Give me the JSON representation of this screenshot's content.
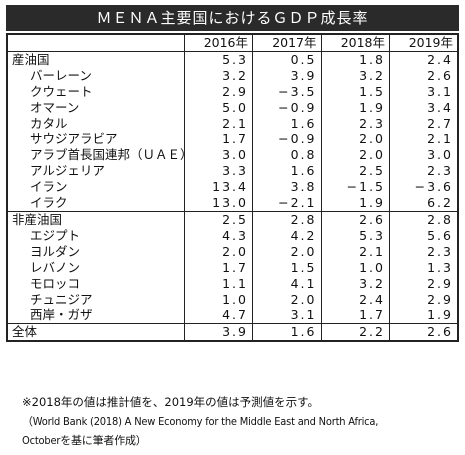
{
  "title": "ＭＥＮＡ主要国におけるＧＤＰ成長率",
  "columns": [
    "2016年",
    "2017年",
    "2018年",
    "2019年"
  ],
  "groups": [
    {
      "label": "産油国",
      "values": [
        "5.3",
        "0.5",
        "1.8",
        "2.4"
      ],
      "items": [
        {
          "label": "バーレーン",
          "values": [
            "3.2",
            "3.9",
            "3.2",
            "2.6"
          ]
        },
        {
          "label": "クウェート",
          "values": [
            "2.9",
            "−3.5",
            "1.5",
            "3.1"
          ]
        },
        {
          "label": "オマーン",
          "values": [
            "5.0",
            "−0.9",
            "1.9",
            "3.4"
          ]
        },
        {
          "label": "カタル",
          "values": [
            "2.1",
            "1.6",
            "2.3",
            "2.7"
          ]
        },
        {
          "label": "サウジアラビア",
          "values": [
            "1.7",
            "−0.9",
            "2.0",
            "2.1"
          ]
        },
        {
          "label": "アラブ首長国連邦（ＵＡＥ）",
          "values": [
            "3.0",
            "0.8",
            "2.0",
            "3.0"
          ]
        },
        {
          "label": "アルジェリア",
          "values": [
            "3.3",
            "1.6",
            "2.5",
            "2.3"
          ]
        },
        {
          "label": "イラン",
          "values": [
            "13.4",
            "3.8",
            "−1.5",
            "−3.6"
          ]
        },
        {
          "label": "イラク",
          "values": [
            "13.0",
            "−2.1",
            "1.9",
            "6.2"
          ]
        }
      ]
    },
    {
      "label": "非産油国",
      "values": [
        "2.5",
        "2.8",
        "2.6",
        "2.8"
      ],
      "items": [
        {
          "label": "エジプト",
          "values": [
            "4.3",
            "4.2",
            "5.3",
            "5.6"
          ]
        },
        {
          "label": "ヨルダン",
          "values": [
            "2.0",
            "2.0",
            "2.1",
            "2.3"
          ]
        },
        {
          "label": "レバノン",
          "values": [
            "1.7",
            "1.5",
            "1.0",
            "1.3"
          ]
        },
        {
          "label": "モロッコ",
          "values": [
            "1.1",
            "4.1",
            "3.2",
            "2.9"
          ]
        },
        {
          "label": "チュニジア",
          "values": [
            "1.0",
            "2.0",
            "2.4",
            "2.9"
          ]
        },
        {
          "label": "西岸・ガザ",
          "values": [
            "4.7",
            "3.1",
            "1.7",
            "1.9"
          ]
        }
      ]
    }
  ],
  "total": {
    "label": "全体",
    "values": [
      "3.9",
      "1.6",
      "2.2",
      "2.6"
    ]
  },
  "notes": [
    "※2018年の値は推計値を、2019年の値は予測値を示す。",
    "（World Bank (2018) A New Economy for the Middle East and North Africa,",
    "Octoberを基に筆者作成）"
  ]
}
